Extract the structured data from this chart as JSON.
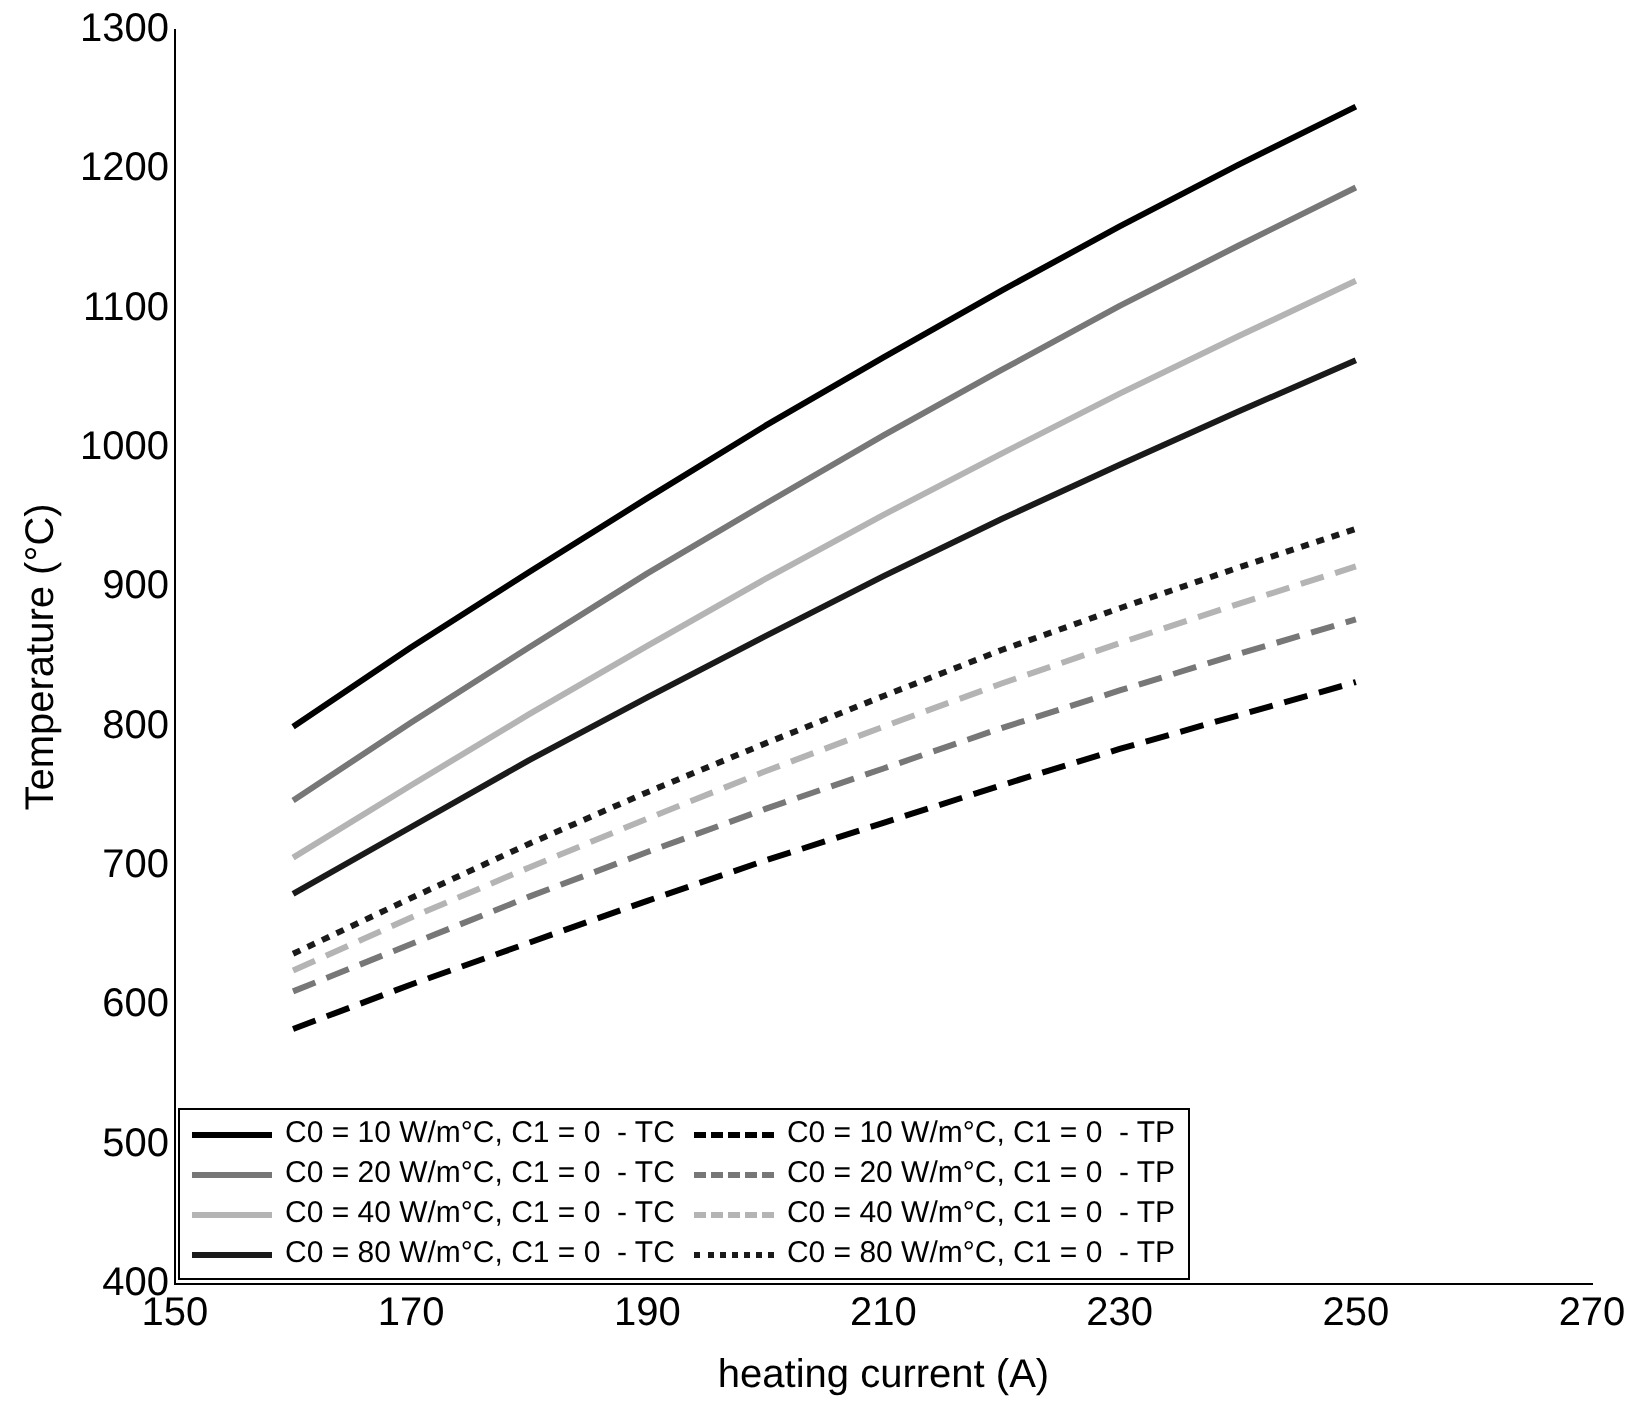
{
  "chart_data": {
    "type": "line",
    "xlabel": "heating current (A)",
    "ylabel": "Temperature (°C)",
    "x": [
      160,
      170,
      180,
      190,
      200,
      210,
      220,
      230,
      240,
      250
    ],
    "xlim": [
      150,
      270
    ],
    "xticks": [
      150,
      170,
      190,
      210,
      230,
      250,
      270
    ],
    "ylim": [
      400,
      1300
    ],
    "yticks": [
      400,
      500,
      600,
      700,
      800,
      900,
      1000,
      1100,
      1200,
      1300
    ],
    "grid": false,
    "legend": "bottom",
    "marker": "none",
    "series": [
      {
        "name": "C0 = 10 W/m°C, C1 = 0  - TC",
        "color": "#000000",
        "line_style": "solid",
        "values": [
          800,
          857,
          911,
          964,
          1016,
          1065,
          1113,
          1159,
          1203,
          1245
        ]
      },
      {
        "name": "C0 = 10 W/m°C, C1 = 0  - TP",
        "color": "#000000",
        "line_style": "dashed",
        "values": [
          583,
          615,
          645,
          675,
          704,
          731,
          758,
          784,
          808,
          832
        ]
      },
      {
        "name": "C0 = 20 W/m°C, C1 = 0  - TC",
        "color": "#777777",
        "line_style": "solid",
        "values": [
          747,
          803,
          857,
          910,
          960,
          1009,
          1056,
          1102,
          1145,
          1187
        ]
      },
      {
        "name": "C0 = 20 W/m°C, C1 = 0  - TP",
        "color": "#777777",
        "line_style": "dashed",
        "values": [
          610,
          644,
          678,
          710,
          741,
          770,
          799,
          826,
          852,
          877
        ]
      },
      {
        "name": "C0 = 40 W/m°C, C1 = 0  - TC",
        "color": "#b4b4b4",
        "line_style": "solid",
        "values": [
          706,
          758,
          809,
          858,
          906,
          952,
          996,
          1039,
          1080,
          1120
        ]
      },
      {
        "name": "C0 = 40 W/m°C, C1 = 0  - TP",
        "color": "#b4b4b4",
        "line_style": "dashed",
        "values": [
          625,
          663,
          699,
          734,
          768,
          800,
          831,
          860,
          888,
          915
        ]
      },
      {
        "name": "C0 = 80 W/m°C, C1 = 0  - TC",
        "color": "#1a1a1a",
        "line_style": "solid",
        "values": [
          680,
          728,
          776,
          821,
          865,
          908,
          949,
          988,
          1026,
          1063
        ]
      },
      {
        "name": "C0 = 80 W/m°C, C1 = 0  - TP",
        "color": "#1a1a1a",
        "line_style": "dotted",
        "values": [
          637,
          677,
          716,
          753,
          788,
          822,
          855,
          885,
          914,
          942
        ]
      }
    ]
  }
}
